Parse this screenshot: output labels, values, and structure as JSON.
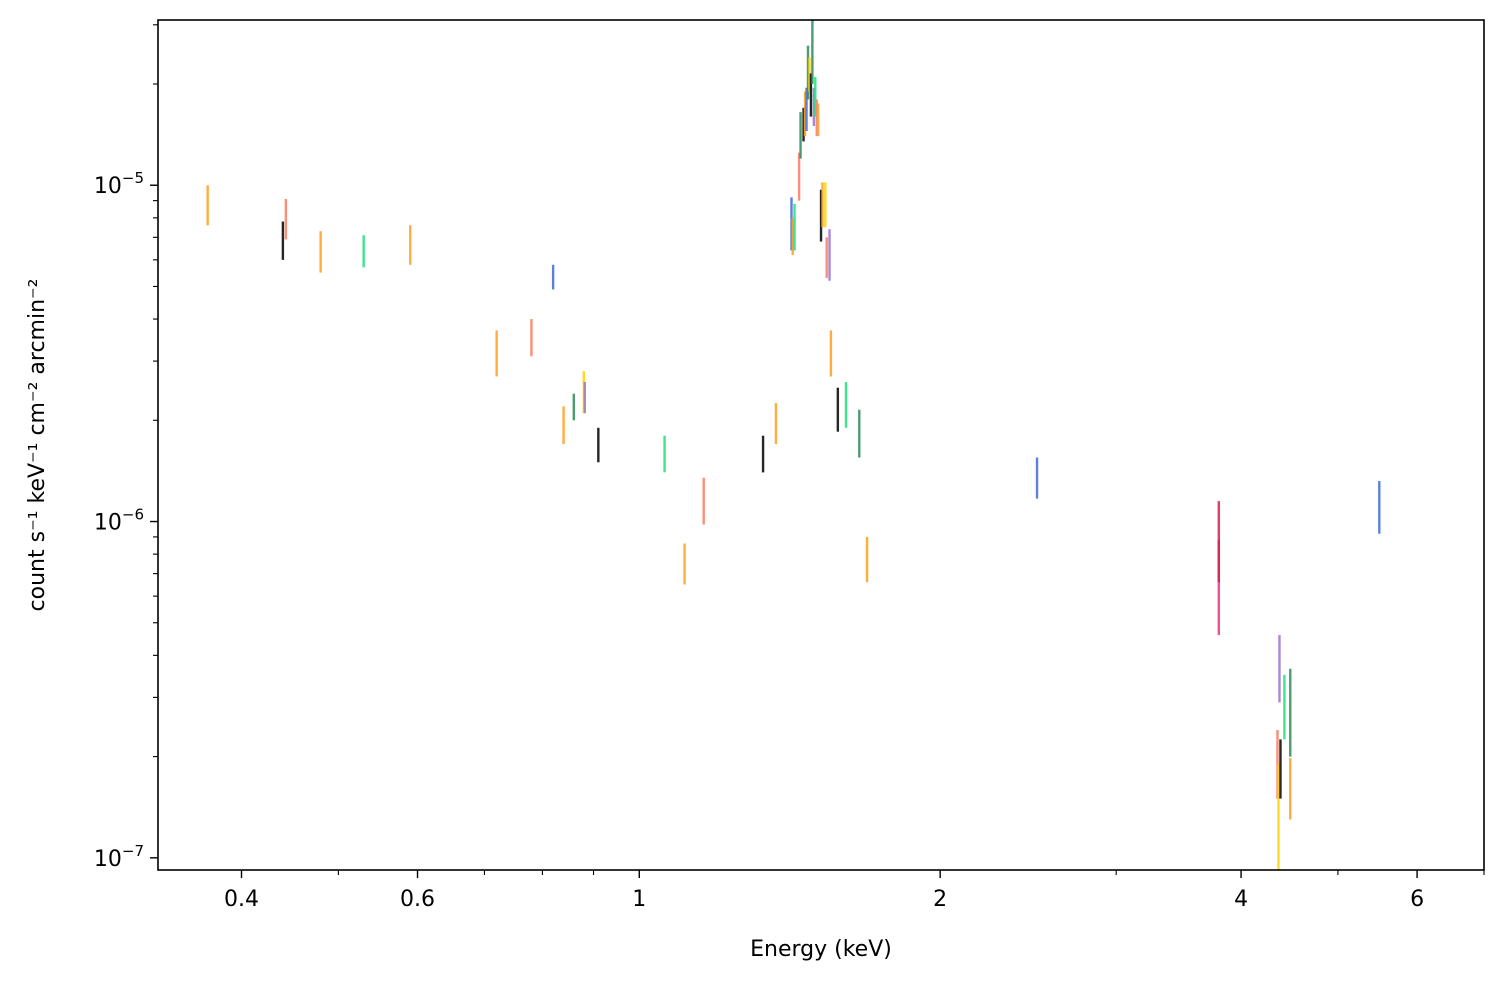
{
  "chart_data": {
    "type": "scatter",
    "title": "",
    "xlabel": "Energy (keV)",
    "ylabel": "count s⁻¹ keV⁻¹ cm⁻² arcmin⁻²",
    "xscale": "log",
    "yscale": "log",
    "xlim": [
      0.33,
      7.0
    ],
    "ylim": [
      9.2e-08,
      3.1e-05
    ],
    "grid": false,
    "legend": "none",
    "x_ticks": [
      {
        "value": 0.4,
        "label": "0.4"
      },
      {
        "value": 0.6,
        "label": "0.6"
      },
      {
        "value": 1,
        "label": "1"
      },
      {
        "value": 2,
        "label": "2"
      },
      {
        "value": 4,
        "label": "4"
      },
      {
        "value": 6,
        "label": "6"
      }
    ],
    "y_ticks": [
      {
        "value": 1e-07,
        "base": "10",
        "exp": "−7"
      },
      {
        "value": 1e-06,
        "base": "10",
        "exp": "−6"
      },
      {
        "value": 1e-05,
        "base": "10",
        "exp": "−5"
      }
    ],
    "error_bars": [
      {
        "x": 0.37,
        "y_low": 7.6e-06,
        "y_high": 1e-05,
        "color": "#ff9f1c"
      },
      {
        "x": 0.44,
        "y_low": 6e-06,
        "y_high": 7.8e-06,
        "color": "#000000"
      },
      {
        "x": 0.443,
        "y_low": 6.9e-06,
        "y_high": 9.1e-06,
        "color": "#fa7b5f"
      },
      {
        "x": 0.48,
        "y_low": 5.5e-06,
        "y_high": 7.3e-06,
        "color": "#ff9f1c"
      },
      {
        "x": 0.53,
        "y_low": 5.7e-06,
        "y_high": 7.1e-06,
        "color": "#1fe07a"
      },
      {
        "x": 0.59,
        "y_low": 5.8e-06,
        "y_high": 7.6e-06,
        "color": "#ff9f1c"
      },
      {
        "x": 0.72,
        "y_low": 2.7e-06,
        "y_high": 3.7e-06,
        "color": "#ff9f1c"
      },
      {
        "x": 0.78,
        "y_low": 3.1e-06,
        "y_high": 4e-06,
        "color": "#fa7b5f"
      },
      {
        "x": 0.82,
        "y_low": 4.9e-06,
        "y_high": 5.8e-06,
        "color": "#3f6bd6"
      },
      {
        "x": 0.84,
        "y_low": 1.7e-06,
        "y_high": 2.2e-06,
        "color": "#ff9f1c"
      },
      {
        "x": 0.86,
        "y_low": 2e-06,
        "y_high": 2.4e-06,
        "color": "#2e8b57"
      },
      {
        "x": 0.88,
        "y_low": 2.1e-06,
        "y_high": 2.8e-06,
        "color": "#ffd400"
      },
      {
        "x": 0.882,
        "y_low": 2.1e-06,
        "y_high": 2.6e-06,
        "color": "#9b72d4"
      },
      {
        "x": 0.91,
        "y_low": 1.5e-06,
        "y_high": 1.9e-06,
        "color": "#000000"
      },
      {
        "x": 1.06,
        "y_low": 1.4e-06,
        "y_high": 1.8e-06,
        "color": "#1fe07a"
      },
      {
        "x": 1.11,
        "y_low": 6.5e-07,
        "y_high": 8.6e-07,
        "color": "#ff9f1c"
      },
      {
        "x": 1.16,
        "y_low": 9.8e-07,
        "y_high": 1.35e-06,
        "color": "#fa7b5f"
      },
      {
        "x": 1.33,
        "y_low": 1.4e-06,
        "y_high": 1.8e-06,
        "color": "#000000"
      },
      {
        "x": 1.37,
        "y_low": 1.7e-06,
        "y_high": 2.25e-06,
        "color": "#ff9f1c"
      },
      {
        "x": 1.42,
        "y_low": 6.4e-06,
        "y_high": 9.2e-06,
        "color": "#3f6bd6"
      },
      {
        "x": 1.424,
        "y_low": 6.2e-06,
        "y_high": 8e-06,
        "color": "#ff9f1c"
      },
      {
        "x": 1.43,
        "y_low": 6.4e-06,
        "y_high": 8.8e-06,
        "color": "#1fe07a"
      },
      {
        "x": 1.445,
        "y_low": 9e-06,
        "y_high": 1.25e-05,
        "color": "#fa7b5f"
      },
      {
        "x": 1.45,
        "y_low": 1.2e-05,
        "y_high": 1.65e-05,
        "color": "#2e8b57"
      },
      {
        "x": 1.46,
        "y_low": 1.35e-05,
        "y_high": 1.7e-05,
        "color": "#000000"
      },
      {
        "x": 1.465,
        "y_low": 1.4e-05,
        "y_high": 1.9e-05,
        "color": "#ff9f1c"
      },
      {
        "x": 1.47,
        "y_low": 1.45e-05,
        "y_high": 1.95e-05,
        "color": "#3f6bd6"
      },
      {
        "x": 1.475,
        "y_low": 1.8e-05,
        "y_high": 2.6e-05,
        "color": "#2e8b57"
      },
      {
        "x": 1.48,
        "y_low": 1.9e-05,
        "y_high": 2.4e-05,
        "color": "#ffd400"
      },
      {
        "x": 1.485,
        "y_low": 1.6e-05,
        "y_high": 2.15e-05,
        "color": "#000000"
      },
      {
        "x": 1.49,
        "y_low": 2e-05,
        "y_high": 3.1e-05,
        "color": "#2e8b57"
      },
      {
        "x": 1.495,
        "y_low": 1.5e-05,
        "y_high": 1.95e-05,
        "color": "#9b72d4"
      },
      {
        "x": 1.5,
        "y_low": 1.6e-05,
        "y_high": 2.1e-05,
        "color": "#1fe07a"
      },
      {
        "x": 1.505,
        "y_low": 1.4e-05,
        "y_high": 1.8e-05,
        "color": "#fa7b5f"
      },
      {
        "x": 1.51,
        "y_low": 1.4e-05,
        "y_high": 1.75e-05,
        "color": "#ff9f1c"
      },
      {
        "x": 1.52,
        "y_low": 6.8e-06,
        "y_high": 9.7e-06,
        "color": "#000000"
      },
      {
        "x": 1.525,
        "y_low": 7.5e-06,
        "y_high": 1.02e-05,
        "color": "#ff9f1c"
      },
      {
        "x": 1.535,
        "y_low": 7.5e-06,
        "y_high": 1.02e-05,
        "color": "#ffd400"
      },
      {
        "x": 1.54,
        "y_low": 5.3e-06,
        "y_high": 7e-06,
        "color": "#fa7b5f"
      },
      {
        "x": 1.55,
        "y_low": 5.2e-06,
        "y_high": 7.4e-06,
        "color": "#9b72d4"
      },
      {
        "x": 1.555,
        "y_low": 2.7e-06,
        "y_high": 3.7e-06,
        "color": "#ff9f1c"
      },
      {
        "x": 1.58,
        "y_low": 1.85e-06,
        "y_high": 2.5e-06,
        "color": "#000000"
      },
      {
        "x": 1.61,
        "y_low": 1.9e-06,
        "y_high": 2.6e-06,
        "color": "#1fe07a"
      },
      {
        "x": 1.66,
        "y_low": 1.55e-06,
        "y_high": 2.15e-06,
        "color": "#2e8b57"
      },
      {
        "x": 1.69,
        "y_low": 6.6e-07,
        "y_high": 9e-07,
        "color": "#ff9f1c"
      },
      {
        "x": 2.5,
        "y_low": 1.17e-06,
        "y_high": 1.55e-06,
        "color": "#3f6bd6"
      },
      {
        "x": 3.8,
        "y_low": 4.6e-07,
        "y_high": 8.8e-07,
        "color": "#f0308a"
      },
      {
        "x": 3.8,
        "y_low": 6.6e-07,
        "y_high": 1.15e-06,
        "color": "#d81c4a"
      },
      {
        "x": 4.35,
        "y_low": 1.5e-07,
        "y_high": 2.4e-07,
        "color": "#fa7b5f"
      },
      {
        "x": 4.36,
        "y_low": 9.2e-08,
        "y_high": 1.9e-07,
        "color": "#ffd400"
      },
      {
        "x": 4.37,
        "y_low": 2.9e-07,
        "y_high": 4.6e-07,
        "color": "#9b72d4"
      },
      {
        "x": 4.38,
        "y_low": 1.5e-07,
        "y_high": 2.25e-07,
        "color": "#000000"
      },
      {
        "x": 4.42,
        "y_low": 2.25e-07,
        "y_high": 3.5e-07,
        "color": "#1fe07a"
      },
      {
        "x": 4.48,
        "y_low": 1.3e-07,
        "y_high": 1.98e-07,
        "color": "#ff9f1c"
      },
      {
        "x": 4.48,
        "y_low": 2e-07,
        "y_high": 3.65e-07,
        "color": "#2e8b57"
      },
      {
        "x": 5.5,
        "y_low": 9.2e-07,
        "y_high": 1.32e-06,
        "color": "#3f6bd6"
      }
    ]
  }
}
